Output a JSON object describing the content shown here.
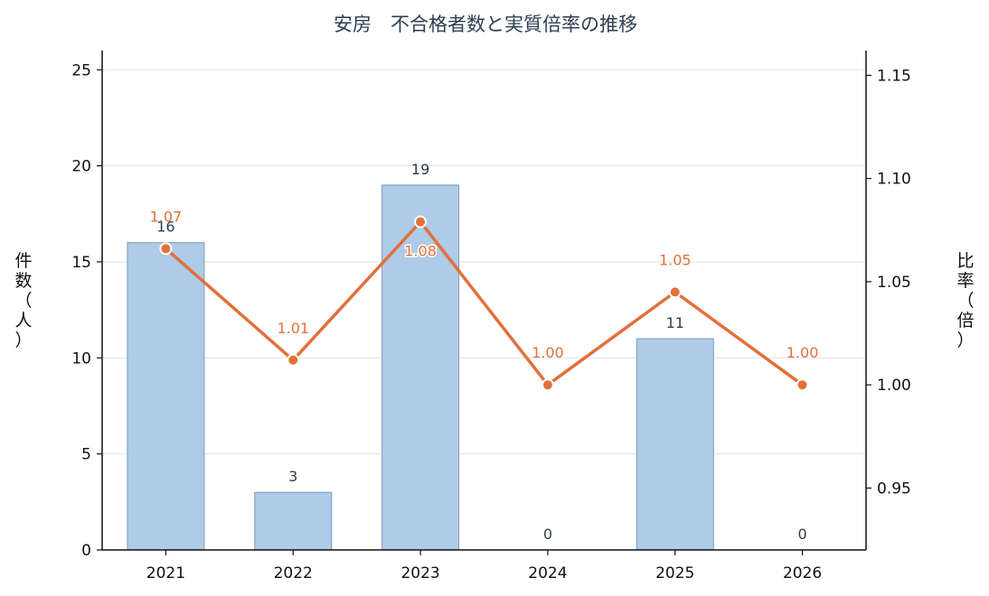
{
  "chart_data": {
    "type": "bar",
    "title": "安房　不合格者数と実質倍率の推移",
    "categories": [
      "2021",
      "2022",
      "2023",
      "2024",
      "2025",
      "2026"
    ],
    "series": [
      {
        "type": "bar",
        "axis": "left",
        "values": [
          16,
          3,
          19,
          0,
          11,
          0
        ],
        "labels": [
          "16",
          "3",
          "19",
          "0",
          "11",
          "0"
        ]
      },
      {
        "type": "line",
        "axis": "right",
        "values": [
          1.066,
          1.012,
          1.079,
          1.0,
          1.045,
          1.0
        ],
        "labels": [
          "1.07",
          "1.01",
          "1.08",
          "1.00",
          "1.05",
          "1.00"
        ]
      }
    ],
    "ylabel_left": "件数（人）",
    "ylabel_right": "比率（倍）",
    "ylim_left": [
      0,
      26
    ],
    "yticks_left": [
      "0",
      "5",
      "10",
      "15",
      "20",
      "25"
    ],
    "ylim_right": [
      0.92,
      1.162
    ],
    "yticks_right": [
      "0.95",
      "1.00",
      "1.05",
      "1.10",
      "1.15"
    ],
    "grid": true,
    "colors": {
      "bar": "#aecbe8",
      "bar_edge": "#7f9bb8",
      "line": "#e2703a",
      "grid": "#dde3ea"
    }
  }
}
